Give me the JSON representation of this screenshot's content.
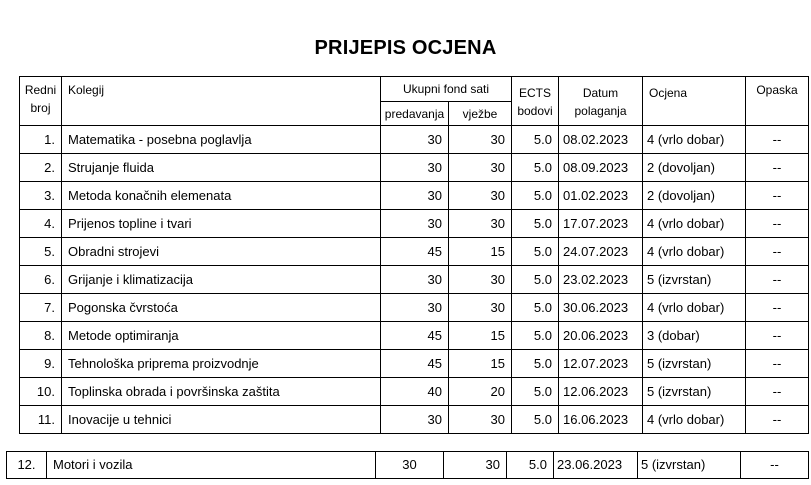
{
  "title": "PRIJEPIS OCJENA",
  "headers": {
    "redni_1": "Redni",
    "redni_2": "broj",
    "kolegij": "Kolegij",
    "ukupni": "Ukupni fond sati",
    "predavanja": "predavanja",
    "vjezbe": "vježbe",
    "ects_1": "ECTS",
    "ects_2": "bodovi",
    "datum_1": "Datum",
    "datum_2": "polaganja",
    "ocjena": "Ocjena",
    "opaska": "Opaska"
  },
  "rows": [
    {
      "no": "1.",
      "course": "Matematika - posebna poglavlja",
      "lectures": "30",
      "exercises": "30",
      "ects": "5.0",
      "date": "08.02.2023",
      "grade": "4 (vrlo dobar)",
      "note": "--"
    },
    {
      "no": "2.",
      "course": "Strujanje fluida",
      "lectures": "30",
      "exercises": "30",
      "ects": "5.0",
      "date": "08.09.2023",
      "grade": "2 (dovoljan)",
      "note": "--"
    },
    {
      "no": "3.",
      "course": "Metoda konačnih elemenata",
      "lectures": "30",
      "exercises": "30",
      "ects": "5.0",
      "date": "01.02.2023",
      "grade": "2 (dovoljan)",
      "note": "--"
    },
    {
      "no": "4.",
      "course": "Prijenos topline i tvari",
      "lectures": "30",
      "exercises": "30",
      "ects": "5.0",
      "date": "17.07.2023",
      "grade": "4 (vrlo dobar)",
      "note": "--"
    },
    {
      "no": "5.",
      "course": "Obradni strojevi",
      "lectures": "45",
      "exercises": "15",
      "ects": "5.0",
      "date": "24.07.2023",
      "grade": "4 (vrlo dobar)",
      "note": "--"
    },
    {
      "no": "6.",
      "course": "Grijanje i klimatizacija",
      "lectures": "30",
      "exercises": "30",
      "ects": "5.0",
      "date": "23.02.2023",
      "grade": "5 (izvrstan)",
      "note": "--"
    },
    {
      "no": "7.",
      "course": "Pogonska čvrstoća",
      "lectures": "30",
      "exercises": "30",
      "ects": "5.0",
      "date": "30.06.2023",
      "grade": "4 (vrlo dobar)",
      "note": "--"
    },
    {
      "no": "8.",
      "course": "Metode optimiranja",
      "lectures": "45",
      "exercises": "15",
      "ects": "5.0",
      "date": "20.06.2023",
      "grade": "3 (dobar)",
      "note": "--"
    },
    {
      "no": "9.",
      "course": "Tehnološka priprema proizvodnje",
      "lectures": "45",
      "exercises": "15",
      "ects": "5.0",
      "date": "12.07.2023",
      "grade": "5 (izvrstan)",
      "note": "--"
    },
    {
      "no": "10.",
      "course": "Toplinska obrada i površinska zaštita",
      "lectures": "40",
      "exercises": "20",
      "ects": "5.0",
      "date": "12.06.2023",
      "grade": "5 (izvrstan)",
      "note": "--"
    },
    {
      "no": "11.",
      "course": "Inovacije u tehnici",
      "lectures": "30",
      "exercises": "30",
      "ects": "5.0",
      "date": "16.06.2023",
      "grade": "4 (vrlo dobar)",
      "note": "--"
    }
  ],
  "continuation_row": {
    "no": "12.",
    "course": "Motori i vozila",
    "lectures": "30",
    "exercises": "30",
    "ects": "5.0",
    "date": "23.06.2023",
    "grade": "5 (izvrstan)",
    "note": "--"
  }
}
